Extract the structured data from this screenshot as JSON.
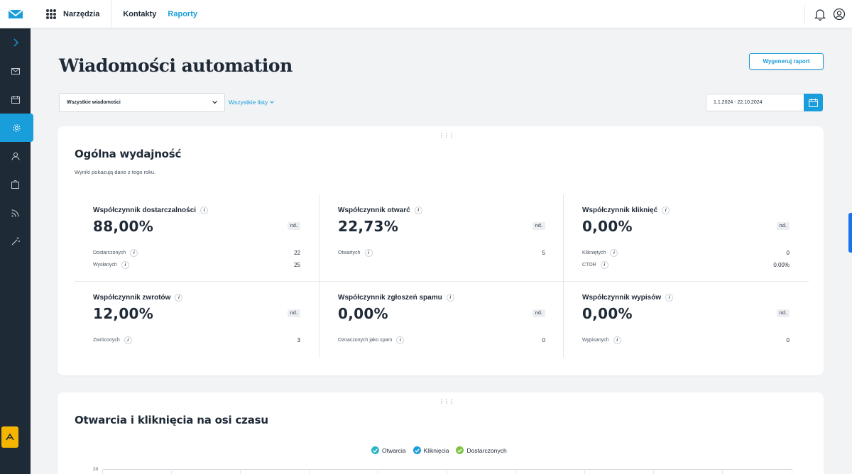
{
  "topbar": {
    "tools_label": "Narzędzia",
    "nav": [
      {
        "label": "Kontakty",
        "active": false
      },
      {
        "label": "Raporty",
        "active": true
      }
    ]
  },
  "colors": {
    "accent": "#1a9ddb",
    "sidebar": "#1f2a37",
    "bottom_badge": "#f5b400",
    "legend_open": "#2bb5c8",
    "legend_click": "#1a9ddb",
    "legend_delivered": "#7cc443"
  },
  "sidebar": {
    "items": [
      {
        "icon": "chevron-right-icon"
      },
      {
        "icon": "mail-icon"
      },
      {
        "icon": "calendar-icon"
      },
      {
        "icon": "gear-icon",
        "active": true
      },
      {
        "icon": "user-icon"
      },
      {
        "icon": "clipboard-icon"
      },
      {
        "icon": "rss-icon"
      },
      {
        "icon": "magic-wand-icon"
      }
    ]
  },
  "page": {
    "title": "Wiadomości automation",
    "generate_button": "Wygeneruj raport",
    "message_select": "Wszystkie wiadomości",
    "lists_link": "Wszystkie listy",
    "date_range": "1.1.2024 - 22.10.2024"
  },
  "performance": {
    "drag_handle": "⋮⋮⋮",
    "title": "Ogólna wydajność",
    "subtitle": "Wyniki pokazują dane z tego roku.",
    "metrics": [
      {
        "title": "Współczynnik dostarczalności",
        "value": "88,00%",
        "badge": "nd.",
        "rows": [
          {
            "label": "Dostarczonych",
            "value": "22"
          },
          {
            "label": "Wysłanych",
            "value": "25"
          }
        ]
      },
      {
        "title": "Współczynnik otwarć",
        "value": "22,73%",
        "badge": "nd.",
        "rows": [
          {
            "label": "Otwartych",
            "value": "5"
          }
        ]
      },
      {
        "title": "Współczynnik kliknięć",
        "value": "0,00%",
        "badge": "nd.",
        "rows": [
          {
            "label": "Klikniętych",
            "value": "0"
          },
          {
            "label": "CTOR",
            "value": "0,00%"
          }
        ]
      },
      {
        "title": "Współczynnik zwrotów",
        "value": "12,00%",
        "badge": "nd.",
        "rows": [
          {
            "label": "Zwróconych",
            "value": "3"
          }
        ]
      },
      {
        "title": "Współczynnik zgłoszeń spamu",
        "value": "0,00%",
        "badge": "nd.",
        "rows": [
          {
            "label": "Oznaczonych jako spam",
            "value": "0"
          }
        ]
      },
      {
        "title": "Współczynnik wypisów",
        "value": "0,00%",
        "badge": "nd.",
        "rows": [
          {
            "label": "Wypisanych",
            "value": "0"
          }
        ]
      }
    ]
  },
  "timeline": {
    "drag_handle": "⋮⋮⋮",
    "title": "Otwarcia i kliknięcia na osi czasu",
    "legend": [
      "Otwarcia",
      "Kliknięcia",
      "Dostarczonych"
    ],
    "y_axis_top": "20"
  }
}
